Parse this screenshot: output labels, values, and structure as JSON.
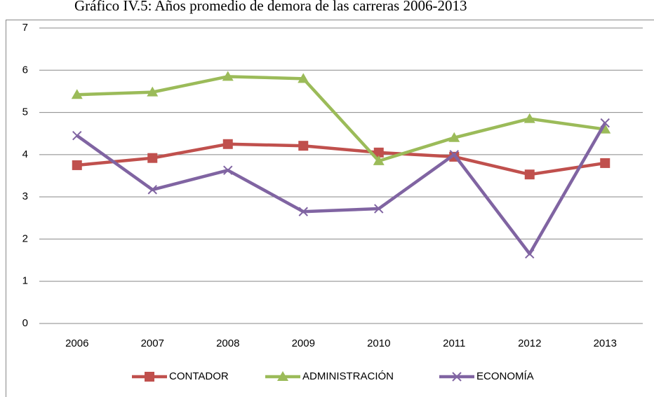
{
  "chart_data": {
    "type": "line",
    "title": "Gráfico IV.5: Años promedio de demora de las carreras 2006-2013",
    "categories": [
      "2006",
      "2007",
      "2008",
      "2009",
      "2010",
      "2011",
      "2012",
      "2013"
    ],
    "series": [
      {
        "name": "CONTADOR",
        "color": "#c0504d",
        "marker": "square",
        "values": [
          3.75,
          3.92,
          4.25,
          4.21,
          4.05,
          3.95,
          3.53,
          3.8
        ]
      },
      {
        "name": "ADMINISTRACIÓN",
        "color": "#9bbb59",
        "marker": "triangle",
        "values": [
          5.42,
          5.48,
          5.85,
          5.8,
          3.85,
          4.4,
          4.85,
          4.6
        ]
      },
      {
        "name": "ECONOMÍA",
        "color": "#8064a2",
        "marker": "x",
        "values": [
          4.45,
          3.17,
          3.63,
          2.65,
          2.72,
          4.0,
          1.65,
          4.75
        ]
      }
    ],
    "ylim": [
      0,
      7
    ],
    "yticks": [
      0,
      1,
      2,
      3,
      4,
      5,
      6,
      7
    ],
    "grid": true,
    "legend": "bottom"
  }
}
